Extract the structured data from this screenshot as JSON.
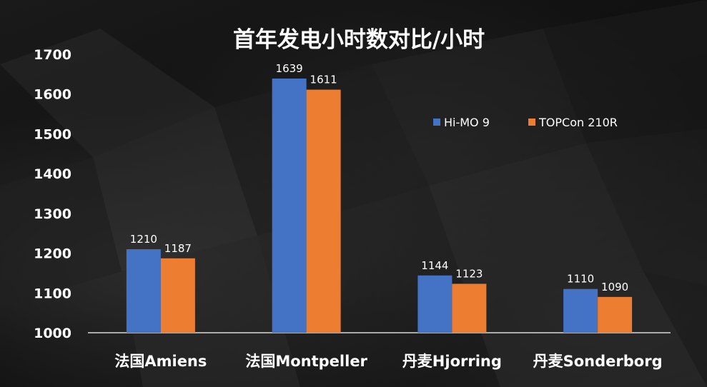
{
  "chart_data": {
    "type": "bar",
    "title": "首年发电小时数对比/小时",
    "categories": [
      "法国Amiens",
      "法国Montpeller",
      "丹麦Hjorring",
      "丹麦Sonderborg"
    ],
    "series": [
      {
        "name": "Hi-MO 9",
        "values": [
          1210,
          1639,
          1144,
          1110
        ],
        "color": "#4472C4"
      },
      {
        "name": "TOPCon 210R",
        "values": [
          1187,
          1611,
          1123,
          1090
        ],
        "color": "#ED7D31"
      }
    ],
    "ylim": [
      1000,
      1700
    ],
    "yticks": [
      1000,
      1100,
      1200,
      1300,
      1400,
      1500,
      1600,
      1700
    ],
    "grid": false,
    "legend_position": "top-right"
  }
}
